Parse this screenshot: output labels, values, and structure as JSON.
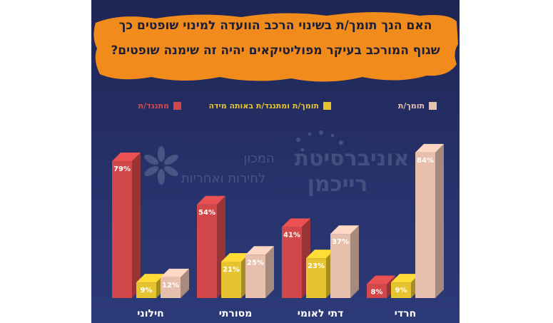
{
  "title_lines": [
    "האם הנך תומך/ת בשינוי הרכב הוועדה למינוי שופטים כך",
    "שגוף המורכב בעיקר מפוליטיקאים יהיה זה שימנה שופטים?"
  ],
  "legend": [
    {
      "label": "מתנגד/ת",
      "color": "#d2484a",
      "text_color": "#d2484a"
    },
    {
      "label": "תומך/ת ומתנגד/ת באותה מידה",
      "color": "#e5c430",
      "text_color": "#e5c430"
    },
    {
      "label": "תומך/ת",
      "color": "#e6c0ad",
      "text_color": "#e6c0ad"
    }
  ],
  "watermark": {
    "institute_line1": "המכון",
    "institute_line2": "לחירות ואחריות",
    "university_line1": "אוניברסיטת",
    "university_line2": "רייכמן"
  },
  "chart_data": {
    "type": "bar",
    "categories": [
      "חילוני",
      "מסורתי",
      "דתי לאומי",
      "חרדי"
    ],
    "series": [
      {
        "name": "מתנגד/ת",
        "color": "#d2484a",
        "values": [
          79,
          54,
          41,
          8
        ]
      },
      {
        "name": "תומך/ת ומתנגד/ת באותה מידה",
        "color": "#e5c430",
        "values": [
          9,
          21,
          23,
          9
        ]
      },
      {
        "name": "תומך/ת",
        "color": "#e6c0ad",
        "values": [
          12,
          25,
          37,
          84
        ]
      }
    ],
    "value_suffix": "%",
    "ylim": [
      0,
      100
    ],
    "grid": false,
    "legend_position": "top"
  }
}
